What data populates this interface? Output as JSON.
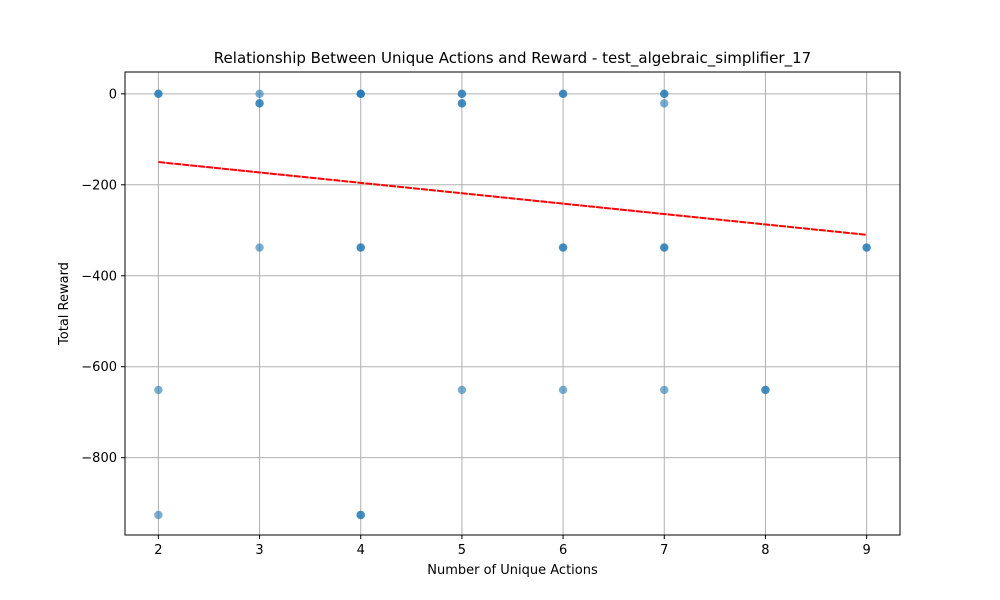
{
  "chart_data": {
    "type": "scatter",
    "title": "Relationship Between Unique Actions and Reward - test_algebraic_simplifier_17",
    "xlabel": "Number of Unique Actions",
    "ylabel": "Total Reward",
    "xlim": [
      1.67,
      9.33
    ],
    "ylim": [
      -970,
      48
    ],
    "xticks": [
      2,
      3,
      4,
      5,
      6,
      7,
      8,
      9
    ],
    "yticks": [
      0,
      -200,
      -400,
      -600,
      -800
    ],
    "ytick_labels": [
      "0",
      "−200",
      "−400",
      "−600",
      "−800"
    ],
    "grid": true,
    "legend": "none",
    "points_color": "#1f77b4",
    "trend_color": "#ff0000",
    "points": [
      {
        "x": 2,
        "y": 0
      },
      {
        "x": 2,
        "y": 0
      },
      {
        "x": 2,
        "y": -651
      },
      {
        "x": 2,
        "y": -926
      },
      {
        "x": 3,
        "y": 0
      },
      {
        "x": 3,
        "y": -21
      },
      {
        "x": 3,
        "y": -21
      },
      {
        "x": 3,
        "y": -338
      },
      {
        "x": 4,
        "y": 0
      },
      {
        "x": 4,
        "y": 0
      },
      {
        "x": 4,
        "y": 0
      },
      {
        "x": 4,
        "y": -338
      },
      {
        "x": 4,
        "y": -338
      },
      {
        "x": 4,
        "y": -926
      },
      {
        "x": 4,
        "y": -926
      },
      {
        "x": 5,
        "y": 0
      },
      {
        "x": 5,
        "y": 0
      },
      {
        "x": 5,
        "y": -21
      },
      {
        "x": 5,
        "y": -21
      },
      {
        "x": 5,
        "y": -651
      },
      {
        "x": 6,
        "y": 0
      },
      {
        "x": 6,
        "y": 0
      },
      {
        "x": 6,
        "y": -338
      },
      {
        "x": 6,
        "y": -338
      },
      {
        "x": 6,
        "y": -651
      },
      {
        "x": 7,
        "y": 0
      },
      {
        "x": 7,
        "y": 0
      },
      {
        "x": 7,
        "y": -21
      },
      {
        "x": 7,
        "y": -338
      },
      {
        "x": 7,
        "y": -338
      },
      {
        "x": 7,
        "y": -651
      },
      {
        "x": 8,
        "y": -651
      },
      {
        "x": 8,
        "y": -651
      },
      {
        "x": 9,
        "y": -338
      },
      {
        "x": 9,
        "y": -338
      }
    ],
    "trend_line": {
      "x": [
        2,
        9
      ],
      "y": [
        -150,
        -310
      ]
    }
  }
}
